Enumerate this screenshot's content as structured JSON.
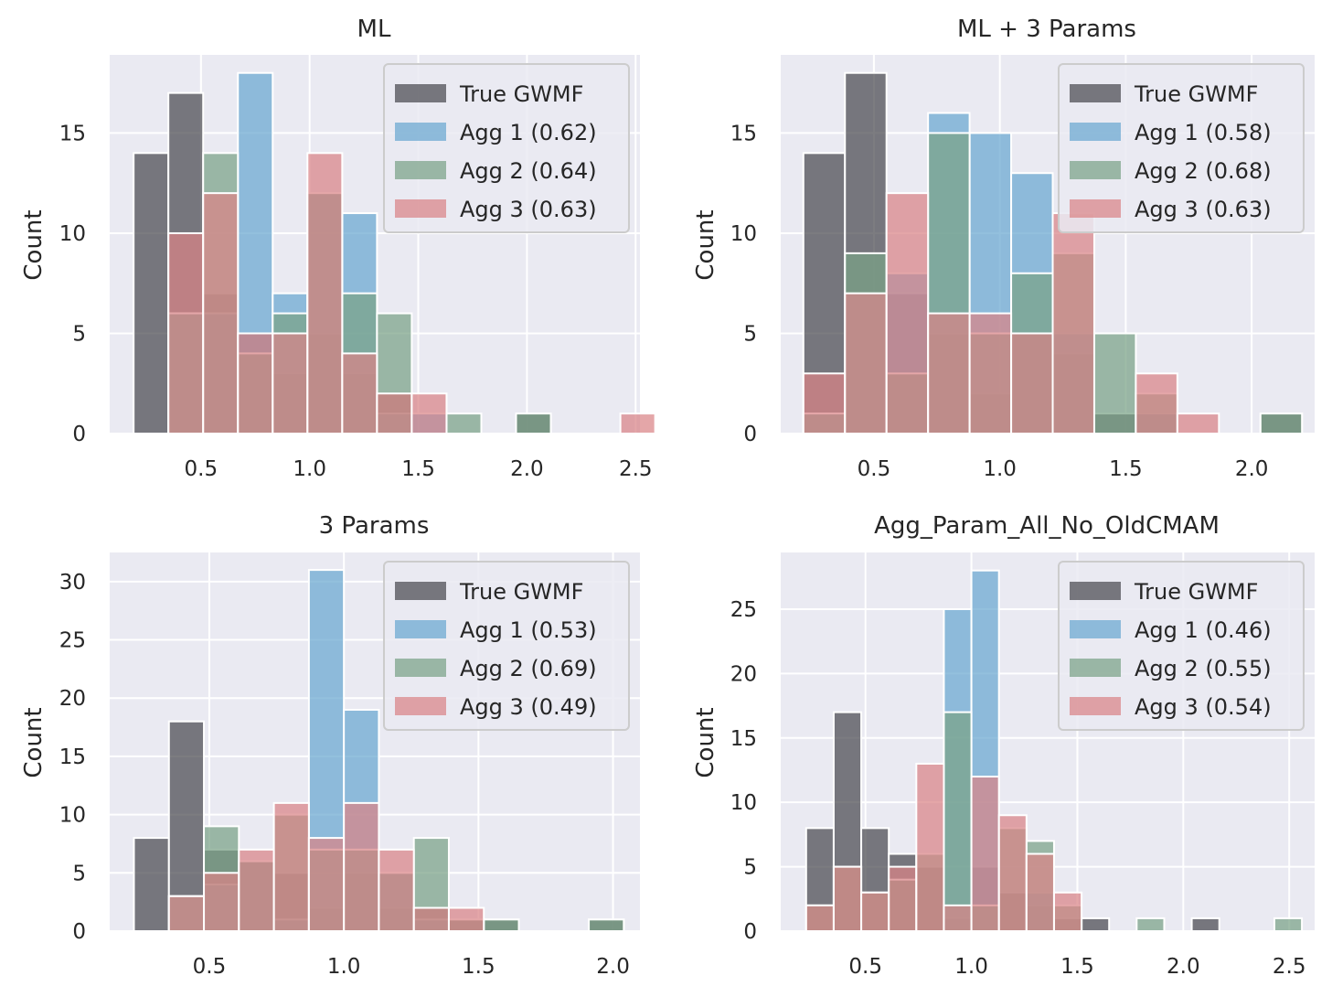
{
  "colors": {
    "True GWMF": "#4a4a4f",
    "Agg 1": "#6aa8d0",
    "Agg 2": "#7aa287",
    "Agg 3": "#d98486",
    "background": "#eaeaf2",
    "grid": "#ffffff"
  },
  "chart_data": [
    {
      "type": "bar",
      "title": "ML",
      "ylabel": "Count",
      "xlim": [
        0.08,
        2.52
      ],
      "ylim": [
        0,
        18.9
      ],
      "xticks": [
        0.5,
        1.0,
        1.5,
        2.0,
        2.5
      ],
      "xtick_labels": [
        "0.5",
        "1.0",
        "1.5",
        "2.0",
        "2.5"
      ],
      "yticks": [
        0,
        5,
        10,
        15
      ],
      "ytick_labels": [
        "0",
        "5",
        "10",
        "15"
      ],
      "legend": "top-right",
      "series": [
        {
          "name": "True GWMF",
          "legend_label": "True GWMF",
          "bin_start": 0.19,
          "bin_width": 0.16,
          "values": [
            14,
            17,
            7,
            5,
            3,
            5,
            3,
            2,
            0,
            0,
            0,
            1,
            0,
            0
          ]
        },
        {
          "name": "Agg 1",
          "legend_label": "Agg 1 (0.62)",
          "bin_start": 0.35,
          "bin_width": 0.16,
          "values": [
            6,
            6,
            18,
            7,
            12,
            11,
            1,
            1
          ]
        },
        {
          "name": "Agg 2",
          "legend_label": "Agg 2 (0.64)",
          "bin_start": 0.35,
          "bin_width": 0.16,
          "values": [
            6,
            14,
            4,
            6,
            12,
            7,
            6,
            0,
            1,
            0,
            1
          ]
        },
        {
          "name": "Agg 3",
          "legend_label": "Agg 3 (0.63)",
          "bin_start": 0.35,
          "bin_width": 0.16,
          "values": [
            10,
            12,
            5,
            5,
            14,
            4,
            2,
            2,
            0,
            0,
            0,
            0,
            0,
            1
          ]
        }
      ]
    },
    {
      "type": "bar",
      "title": "ML + 3 Params",
      "ylabel": "Count",
      "xlim": [
        0.13,
        2.25
      ],
      "ylim": [
        0,
        18.9
      ],
      "xticks": [
        0.5,
        1.0,
        1.5,
        2.0
      ],
      "xtick_labels": [
        "0.5",
        "1.0",
        "1.5",
        "2.0"
      ],
      "yticks": [
        0,
        5,
        10,
        15
      ],
      "ytick_labels": [
        "0",
        "5",
        "10",
        "15"
      ],
      "legend": "top-right",
      "series": [
        {
          "name": "True GWMF",
          "legend_label": "True GWMF",
          "bin_start": 0.22,
          "bin_width": 0.165,
          "values": [
            14,
            18,
            7,
            5,
            2,
            5,
            4,
            1,
            1,
            0,
            0,
            1
          ]
        },
        {
          "name": "Agg 1",
          "legend_label": "Agg 1 (0.58)",
          "bin_start": 0.22,
          "bin_width": 0.165,
          "values": [
            1,
            7,
            8,
            16,
            15,
            13,
            5,
            0,
            1
          ]
        },
        {
          "name": "Agg 2",
          "legend_label": "Agg 2 (0.68)",
          "bin_start": 0.22,
          "bin_width": 0.165,
          "values": [
            1,
            9,
            3,
            15,
            5,
            8,
            9,
            5,
            2,
            0,
            0,
            1
          ]
        },
        {
          "name": "Agg 3",
          "legend_label": "Agg 3 (0.63)",
          "bin_start": 0.22,
          "bin_width": 0.165,
          "values": [
            3,
            7,
            12,
            6,
            6,
            5,
            11,
            0,
            3,
            1
          ]
        }
      ]
    },
    {
      "type": "bar",
      "title": "3 Params",
      "ylabel": "Count",
      "xlim": [
        0.13,
        2.1
      ],
      "ylim": [
        0,
        32.5
      ],
      "xticks": [
        0.5,
        1.0,
        1.5,
        2.0
      ],
      "xtick_labels": [
        "0.5",
        "1.0",
        "1.5",
        "2.0"
      ],
      "yticks": [
        0,
        5,
        10,
        15,
        20,
        25,
        30
      ],
      "ytick_labels": [
        "0",
        "5",
        "10",
        "15",
        "20",
        "25",
        "30"
      ],
      "legend": "top-right",
      "series": [
        {
          "name": "True GWMF",
          "legend_label": "True GWMF",
          "bin_start": 0.22,
          "bin_width": 0.13,
          "values": [
            8,
            18,
            7,
            6,
            5,
            2,
            5,
            2,
            2,
            1,
            1,
            0,
            0,
            1
          ]
        },
        {
          "name": "Agg 1",
          "legend_label": "Agg 1 (0.53)",
          "bin_start": 0.22,
          "bin_width": 0.13,
          "values": [
            0,
            3,
            4,
            6,
            1,
            31,
            19,
            5,
            1
          ]
        },
        {
          "name": "Agg 2",
          "legend_label": "Agg 2 (0.69)",
          "bin_start": 0.22,
          "bin_width": 0.13,
          "values": [
            0,
            3,
            9,
            6,
            10,
            7,
            7,
            5,
            8,
            1,
            1,
            0,
            0,
            1
          ]
        },
        {
          "name": "Agg 3",
          "legend_label": "Agg 3 (0.49)",
          "bin_start": 0.22,
          "bin_width": 0.13,
          "values": [
            0,
            3,
            5,
            7,
            11,
            8,
            11,
            7,
            2,
            2
          ]
        }
      ]
    },
    {
      "type": "bar",
      "title": "Agg_Param_All_No_OldCMAM",
      "ylabel": "Count",
      "xlim": [
        0.1,
        2.62
      ],
      "ylim": [
        0,
        29.4
      ],
      "xticks": [
        0.5,
        1.0,
        1.5,
        2.0,
        2.5
      ],
      "xtick_labels": [
        "0.5",
        "1.0",
        "1.5",
        "2.0",
        "2.5"
      ],
      "yticks": [
        0,
        5,
        10,
        15,
        20,
        25
      ],
      "ytick_labels": [
        "0",
        "5",
        "10",
        "15",
        "20",
        "25"
      ],
      "legend": "top-right",
      "series": [
        {
          "name": "True GWMF",
          "legend_label": "True GWMF",
          "bin_start": 0.22,
          "bin_width": 0.13,
          "values": [
            8,
            17,
            8,
            6,
            5,
            1,
            5,
            3,
            2,
            1,
            1,
            0,
            0,
            0,
            1
          ]
        },
        {
          "name": "Agg 1",
          "legend_label": "Agg 1 (0.46)",
          "bin_start": 0.22,
          "bin_width": 0.13,
          "values": [
            0,
            0,
            0,
            0,
            0,
            25,
            28,
            0,
            3
          ]
        },
        {
          "name": "Agg 2",
          "legend_label": "Agg 2 (0.55)",
          "bin_start": 0.22,
          "bin_width": 0.13,
          "values": [
            2,
            5,
            3,
            4,
            6,
            17,
            2,
            8,
            7,
            2,
            0,
            0,
            1,
            0,
            0,
            0,
            0,
            1
          ]
        },
        {
          "name": "Agg 3",
          "legend_label": "Agg 3 (0.54)",
          "bin_start": 0.22,
          "bin_width": 0.13,
          "values": [
            2,
            5,
            3,
            5,
            13,
            2,
            12,
            9,
            6,
            3
          ]
        }
      ]
    }
  ]
}
